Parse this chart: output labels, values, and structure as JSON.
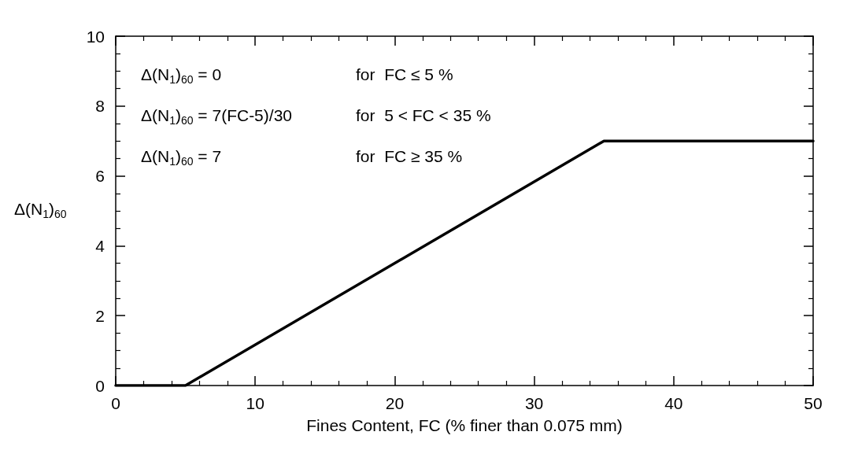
{
  "chart_data": {
    "type": "line",
    "xlabel": "Fines Content, FC (% finer than 0.075 mm)",
    "ylabel": "Δ(N$_{1}$)$_{60}$",
    "x": [
      0,
      5,
      35,
      50
    ],
    "series": [
      {
        "color": "#000000",
        "values": [
          0,
          0,
          7,
          7
        ]
      }
    ],
    "xlim": [
      0,
      50
    ],
    "xticks": [
      0,
      10,
      20,
      30,
      40,
      50
    ],
    "ylim": [
      0,
      10
    ],
    "yticks": [
      0,
      2,
      4,
      6,
      8,
      10
    ],
    "grid": false,
    "marker": "none",
    "line_style": "solid",
    "annotations": [
      "Δ(N$_{1}$)$_{60}$ = 0",
      "for  FC ≤ 5 %",
      "Δ(N$_{1}$)$_{60}$ = 7(FC-5)/30",
      "for  5 < FC < 35 %",
      "Δ(N$_{1}$)$_{60}$ = 7",
      "for  FC ≥ 35 %"
    ]
  }
}
